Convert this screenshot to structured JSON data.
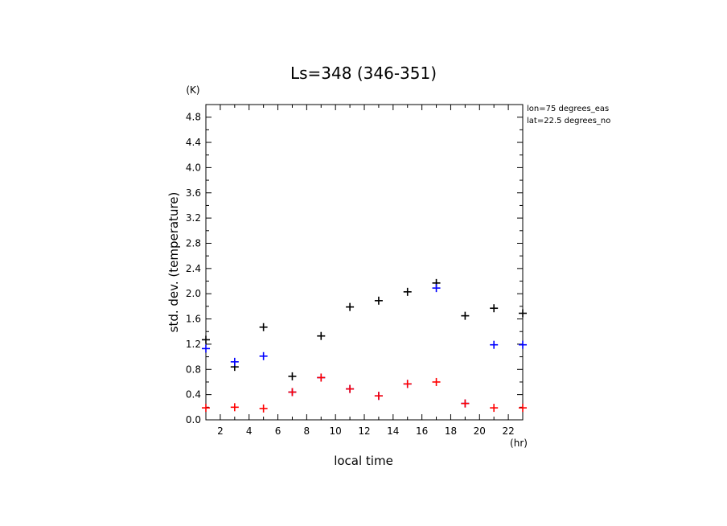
{
  "chart_data": {
    "type": "scatter",
    "title": "Ls=348 (346-351)",
    "xlabel": "local time",
    "ylabel": "std. dev. (temperature)",
    "x_unit": "(hr)",
    "y_unit": "(K)",
    "xlim": [
      1,
      23
    ],
    "ylim": [
      0,
      5
    ],
    "x_ticks": [
      2,
      4,
      6,
      8,
      10,
      12,
      14,
      16,
      18,
      20,
      22
    ],
    "y_ticks": [
      "0.0",
      "0.4",
      "0.8",
      "1.2",
      "1.6",
      "2.0",
      "2.4",
      "2.8",
      "3.2",
      "3.6",
      "4.0",
      "4.4",
      "4.8"
    ],
    "annotations": [
      "lon=75 degrees_eas",
      "lat=22.5 degrees_no"
    ],
    "grid": false,
    "marker": "plus",
    "series": [
      {
        "color": "#000000",
        "points": [
          [
            1,
            1.27
          ],
          [
            3,
            0.84
          ],
          [
            5,
            1.47
          ],
          [
            7,
            0.69
          ],
          [
            9,
            1.33
          ],
          [
            11,
            1.79
          ],
          [
            13,
            1.89
          ],
          [
            15,
            2.03
          ],
          [
            17,
            2.17
          ],
          [
            19,
            1.65
          ],
          [
            21,
            1.77
          ],
          [
            23,
            1.69
          ]
        ]
      },
      {
        "color": "#0000ff",
        "points": [
          [
            1,
            1.13
          ],
          [
            3,
            0.92
          ],
          [
            5,
            1.01
          ],
          [
            7,
            0.44
          ],
          [
            9,
            0.67
          ],
          [
            11,
            0.49
          ],
          [
            13,
            0.38
          ],
          [
            15,
            0.57
          ],
          [
            17,
            2.09
          ],
          [
            19,
            0.26
          ],
          [
            21,
            1.19
          ],
          [
            23,
            1.19
          ]
        ]
      },
      {
        "color": "#ff0000",
        "points": [
          [
            1,
            0.19
          ],
          [
            3,
            0.2
          ],
          [
            5,
            0.18
          ],
          [
            7,
            0.44
          ],
          [
            9,
            0.67
          ],
          [
            11,
            0.49
          ],
          [
            13,
            0.38
          ],
          [
            15,
            0.57
          ],
          [
            17,
            0.6
          ],
          [
            19,
            0.26
          ],
          [
            21,
            0.19
          ],
          [
            23,
            0.19
          ]
        ]
      }
    ]
  }
}
